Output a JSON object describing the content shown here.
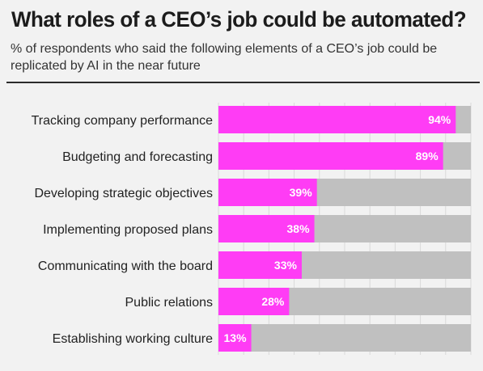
{
  "header": {
    "title": "What roles of a CEO’s job could be automated?",
    "subtitle": "% of respondents who said the following elements of a CEO’s job could be replicated by AI in the near future"
  },
  "colors": {
    "bar": "#ff3cf5",
    "track": "#c0c0c0",
    "background": "#f2f2f2",
    "value_text": "#ffffff"
  },
  "chart_data": {
    "type": "bar",
    "orientation": "horizontal",
    "title": "What roles of a CEO’s job could be automated?",
    "subtitle": "% of respondents who said the following elements of a CEO’s job could be replicated by AI in the near future",
    "categories": [
      "Tracking company performance",
      "Budgeting and forecasting",
      "Developing strategic objectives",
      "Implementing proposed plans",
      "Communicating with the board",
      "Public relations",
      "Establishing working culture"
    ],
    "values": [
      94,
      89,
      39,
      38,
      33,
      28,
      13
    ],
    "value_labels": [
      "94%",
      "89%",
      "39%",
      "38%",
      "33%",
      "28%",
      "13%"
    ],
    "xlim": [
      0,
      100
    ],
    "grid": true,
    "legend": "none"
  }
}
